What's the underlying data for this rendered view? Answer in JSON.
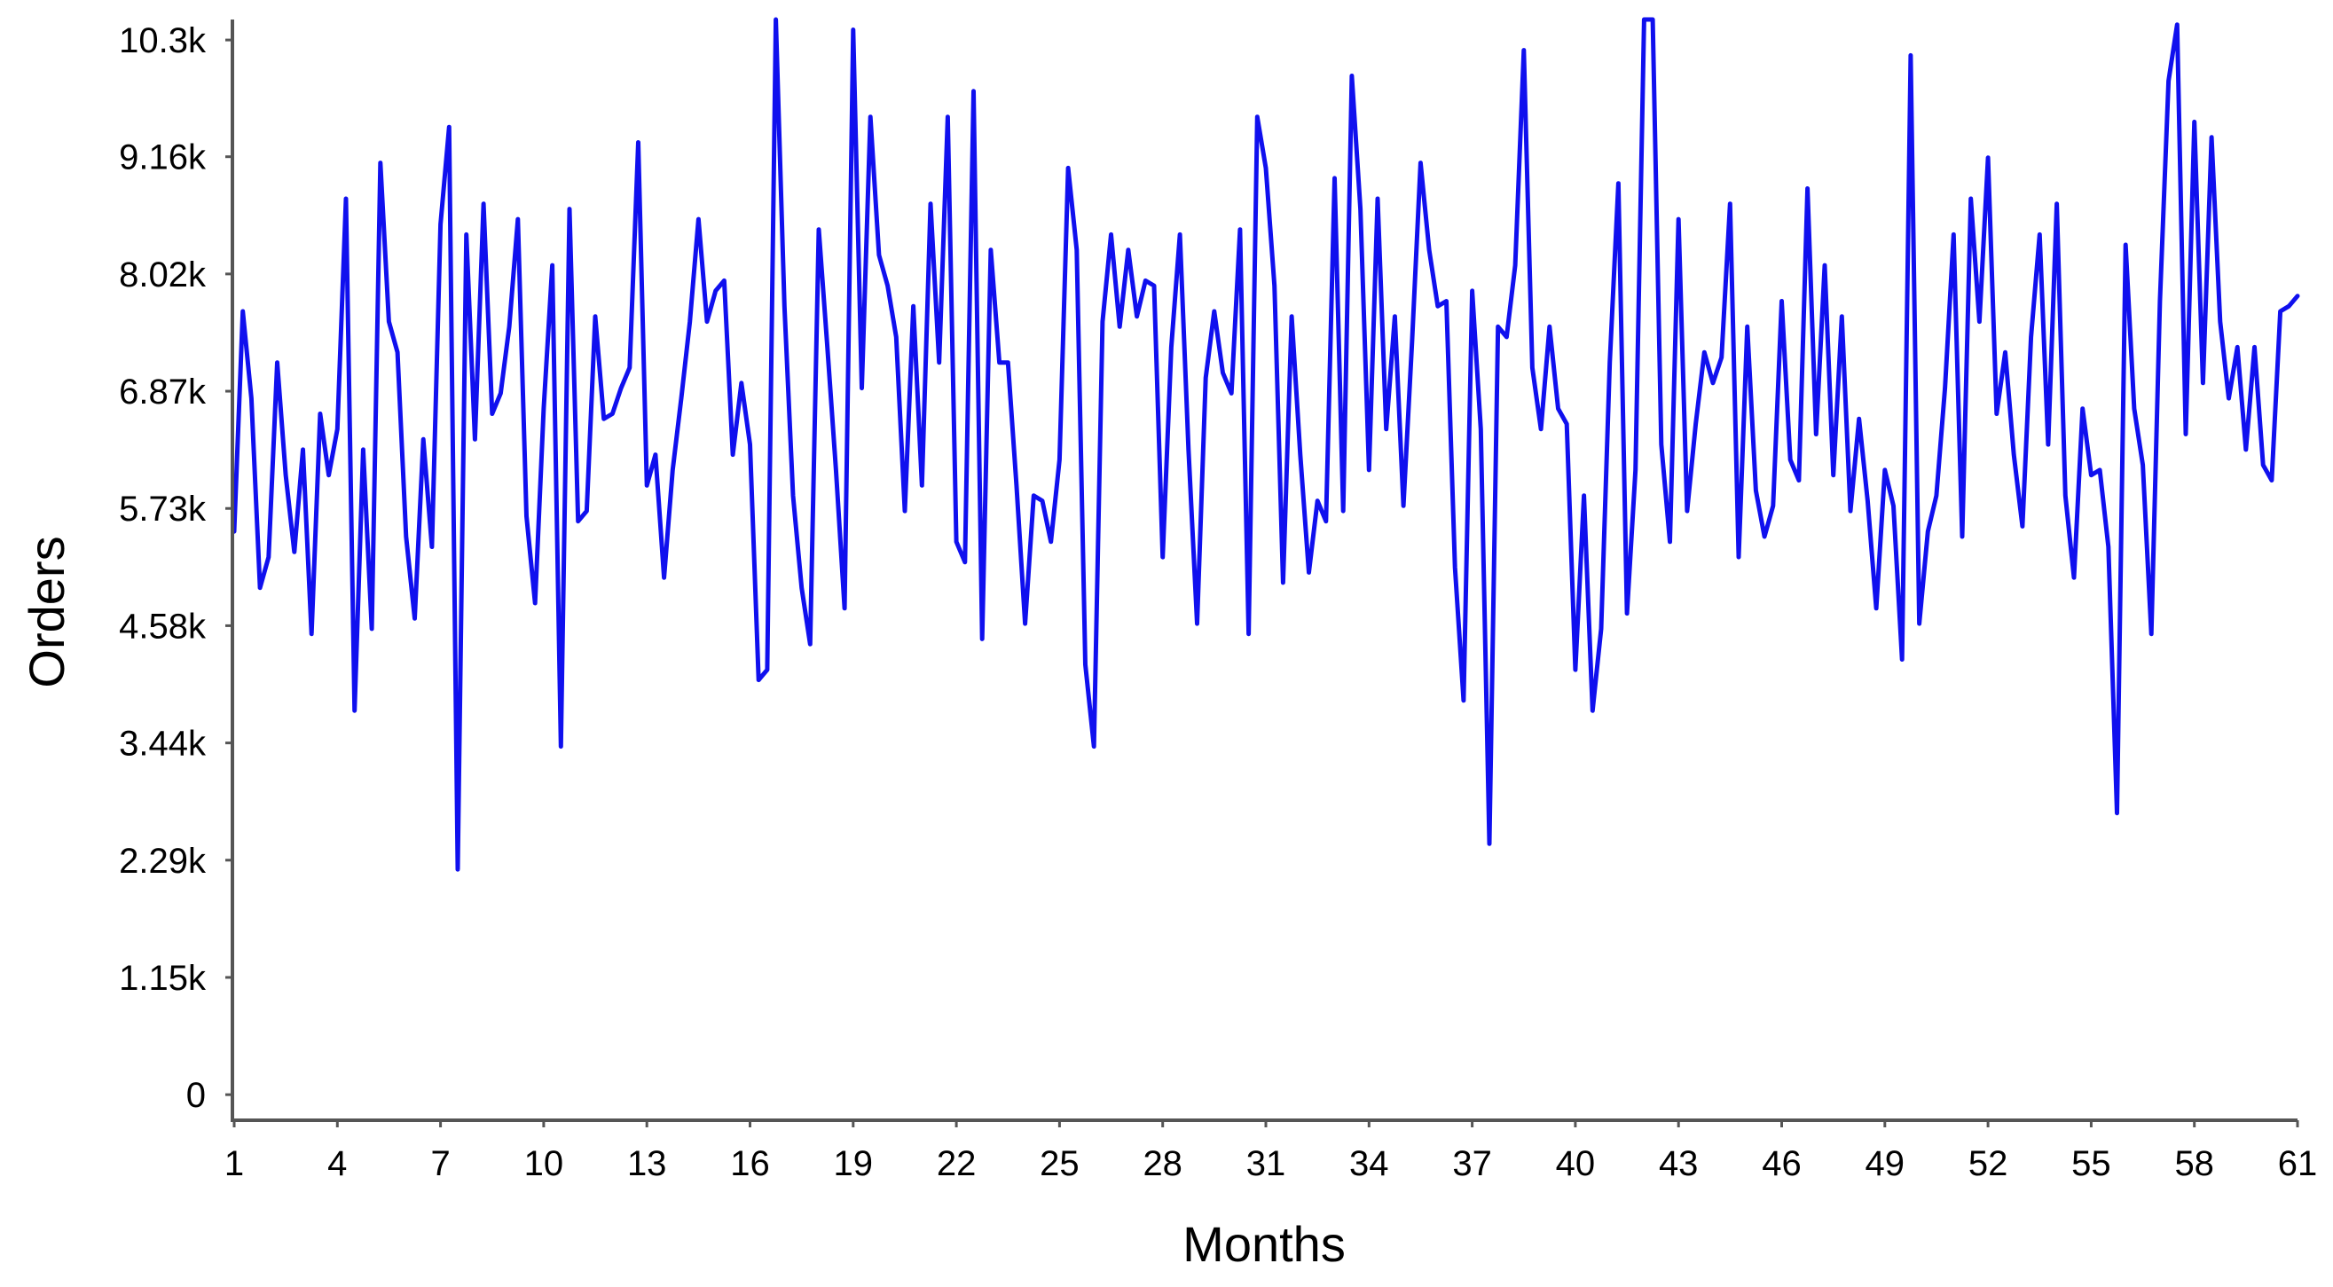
{
  "chart_data": {
    "type": "line",
    "title": "",
    "xlabel": "Months",
    "ylabel": "Orders",
    "x_ticks": [
      "1",
      "4",
      "7",
      "10",
      "13",
      "16",
      "19",
      "22",
      "25",
      "28",
      "31",
      "34",
      "37",
      "40",
      "43",
      "46",
      "49",
      "52",
      "55",
      "58",
      "61"
    ],
    "y_ticks": [
      "0",
      "1.15k",
      "2.29k",
      "3.44k",
      "4.58k",
      "5.73k",
      "6.87k",
      "8.02k",
      "9.16k",
      "10.3k"
    ],
    "xlim": [
      1,
      61
    ],
    "ylim": [
      -250,
      10500
    ],
    "y_tick_values": [
      0,
      1145,
      2290,
      3435,
      4580,
      5725,
      6870,
      8015,
      9160,
      10300
    ],
    "grid": false,
    "legend": "none",
    "colors": {
      "line": "#1010ee",
      "axis": "#555555",
      "text": "#000000"
    },
    "series": [
      {
        "values": [
          5500,
          7650,
          6800,
          4950,
          5250,
          7150,
          6050,
          5300,
          6300,
          4500,
          6650,
          6050,
          6500,
          8750,
          3750,
          6300,
          4550,
          9100,
          7550,
          7250,
          5450,
          4650,
          6400,
          5350,
          8500,
          9450,
          2200,
          8400,
          6400,
          8700,
          6650,
          6850,
          7500,
          8550,
          5650,
          4800,
          6700,
          8100,
          3400,
          8650,
          5600,
          5700,
          7600,
          6600,
          6650,
          6900,
          7100,
          9300,
          5950,
          6250,
          5050,
          6100,
          6800,
          7550,
          8550,
          7550,
          7850,
          7950,
          6250,
          6950,
          6350,
          4050,
          4150,
          10500,
          7700,
          5850,
          4950,
          4400,
          8450,
          7300,
          6100,
          4750,
          10400,
          6900,
          9550,
          8200,
          7900,
          7400,
          5700,
          7700,
          5950,
          8700,
          7150,
          9550,
          5400,
          5200,
          9800,
          4450,
          8250,
          7150,
          7150,
          5950,
          4600,
          5850,
          5800,
          5400,
          6200,
          9050,
          8250,
          4200,
          3400,
          7550,
          8400,
          7500,
          8250,
          7600,
          7950,
          7900,
          5250,
          7300,
          8400,
          6300,
          4600,
          7000,
          7650,
          7050,
          6850,
          8450,
          4500,
          9550,
          9050,
          7900,
          5000,
          7600,
          6250,
          5100,
          5800,
          5600,
          8950,
          5700,
          9950,
          8650,
          6100,
          8750,
          6500,
          7600,
          5750,
          7350,
          9100,
          8250,
          7700,
          7750,
          5150,
          3850,
          7850,
          6500,
          2450,
          7500,
          7400,
          8100,
          10200,
          7100,
          6500,
          7500,
          6700,
          6550,
          4150,
          5850,
          3750,
          4550,
          7150,
          8900,
          4700,
          6100,
          10600,
          10600,
          6350,
          5400,
          8550,
          5700,
          6550,
          7250,
          6950,
          7200,
          8700,
          5250,
          7500,
          5900,
          5450,
          5750,
          7750,
          6200,
          6000,
          8850,
          6450,
          8100,
          6050,
          7600,
          5700,
          6600,
          5800,
          4750,
          6100,
          5750,
          4250,
          10150,
          4600,
          5500,
          5850,
          6900,
          8400,
          5450,
          8750,
          7550,
          9150,
          6650,
          7250,
          6250,
          5550,
          7400,
          8400,
          6350,
          8700,
          5850,
          5050,
          6700,
          6050,
          6100,
          5350,
          2750,
          8300,
          6700,
          6150,
          4500,
          7750,
          9900,
          10450,
          6450,
          9500,
          6950,
          9350,
          7550,
          6800,
          7300,
          6300,
          7300,
          6150,
          6000,
          7650,
          7700,
          7800
        ]
      }
    ]
  }
}
